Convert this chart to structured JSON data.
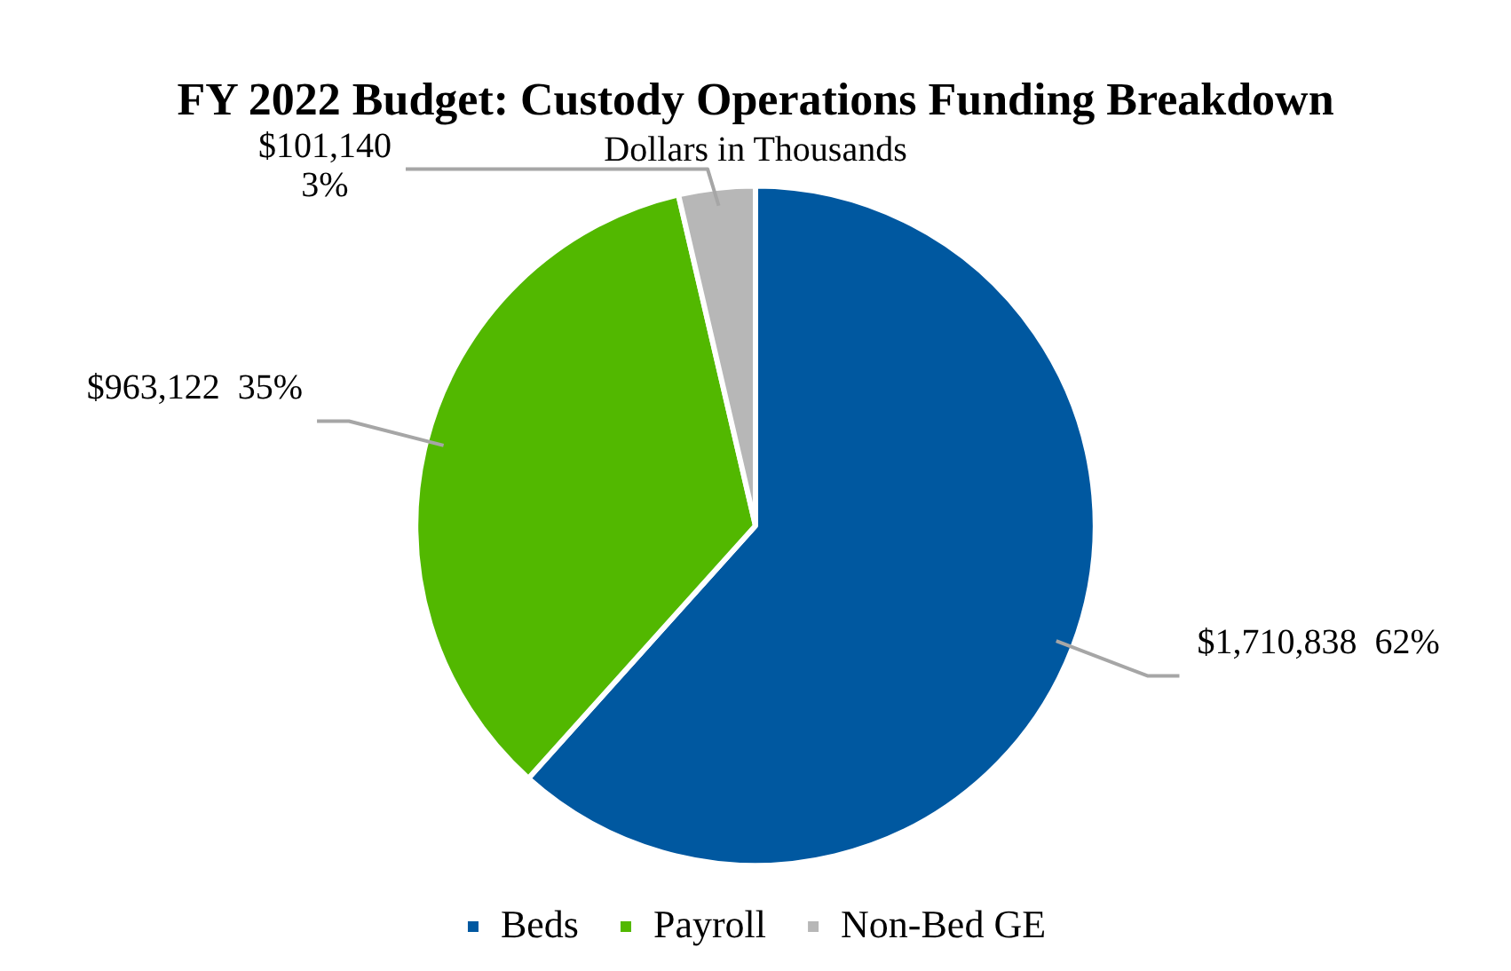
{
  "chart_data": {
    "type": "pie",
    "title": "FY 2022 Budget: Custody Operations Funding Breakdown",
    "subtitle": "Dollars in Thousands",
    "categories": [
      "Beds",
      "Payroll",
      "Non-Bed GE"
    ],
    "values": [
      1710838,
      963122,
      101140
    ],
    "colors": [
      "#0058a0",
      "#52b800",
      "#b7b7b7"
    ],
    "value_labels": [
      "$1,710,838  62%",
      "$963,122  35%",
      "$101,140\n3%"
    ],
    "legend": "bottom"
  }
}
